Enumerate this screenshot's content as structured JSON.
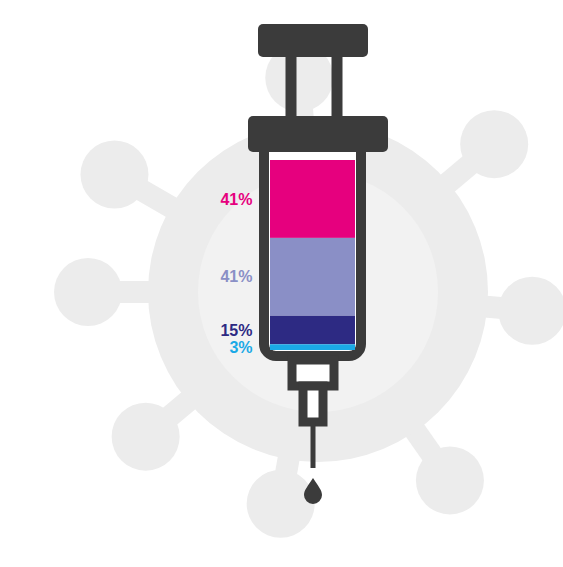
{
  "chart_data": {
    "type": "bar",
    "stacked": true,
    "values": [
      41,
      41,
      15,
      3
    ],
    "value_labels": [
      "41%",
      "41%",
      "15%",
      "3%"
    ],
    "colors": [
      "#e6007e",
      "#8a8fc6",
      "#2d2a83",
      "#1aa9e6"
    ],
    "ylim": [
      0,
      100
    ],
    "data_labels": true,
    "tick_labels": false
  }
}
